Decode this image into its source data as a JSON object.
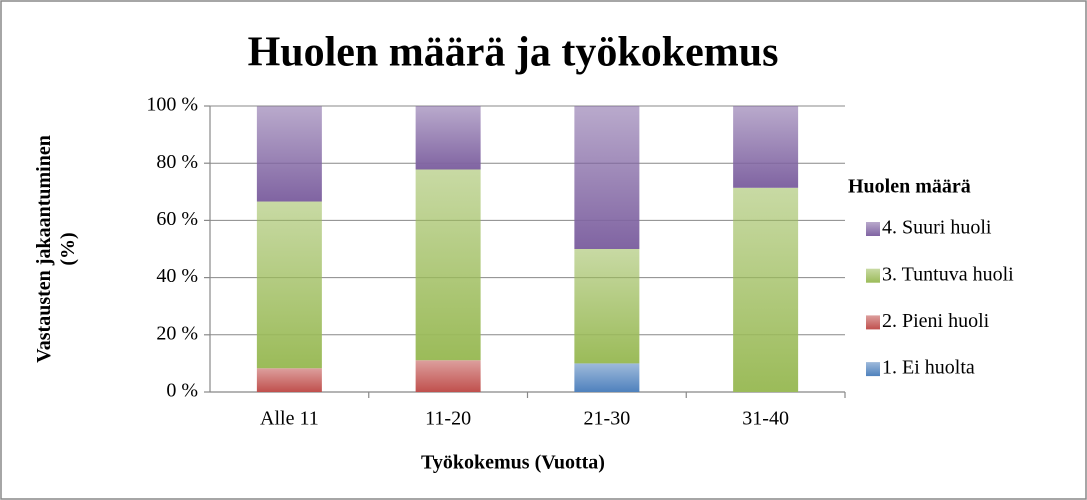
{
  "chart_data": {
    "type": "stacked_bar",
    "title": "Huolen määrä ja työkokemus",
    "xlabel": "Työkokemus (Vuotta)",
    "ylabel": [
      "Vastausten jakaantuminen",
      "(%)"
    ],
    "categories": [
      "Alle 11",
      "11-20",
      "21-30",
      "31-40"
    ],
    "series": [
      {
        "name": "1. Ei huolta",
        "color": "#4f81bd",
        "values": [
          0,
          0,
          10,
          0
        ]
      },
      {
        "name": "2. Pieni huoli",
        "color": "#c0504d",
        "values": [
          8.3,
          11.1,
          0,
          0
        ]
      },
      {
        "name": "3. Tuntuva huoli",
        "color": "#9bbb59",
        "values": [
          58.3,
          66.7,
          40,
          71.4
        ]
      },
      {
        "name": "4. Suuri huoli",
        "color": "#8064a2",
        "values": [
          33.3,
          22.2,
          50,
          28.6
        ]
      }
    ],
    "legend_title": "Huolen määrä",
    "legend": "right",
    "ylim": [
      0,
      100
    ],
    "yticks": [
      {
        "value": 0,
        "label": "0 %"
      },
      {
        "value": 20,
        "label": "20 %"
      },
      {
        "value": 40,
        "label": "40 %"
      },
      {
        "value": 60,
        "label": "60 %"
      },
      {
        "value": 80,
        "label": "80 %"
      },
      {
        "value": 100,
        "label": "100 %"
      }
    ],
    "grid": true
  }
}
